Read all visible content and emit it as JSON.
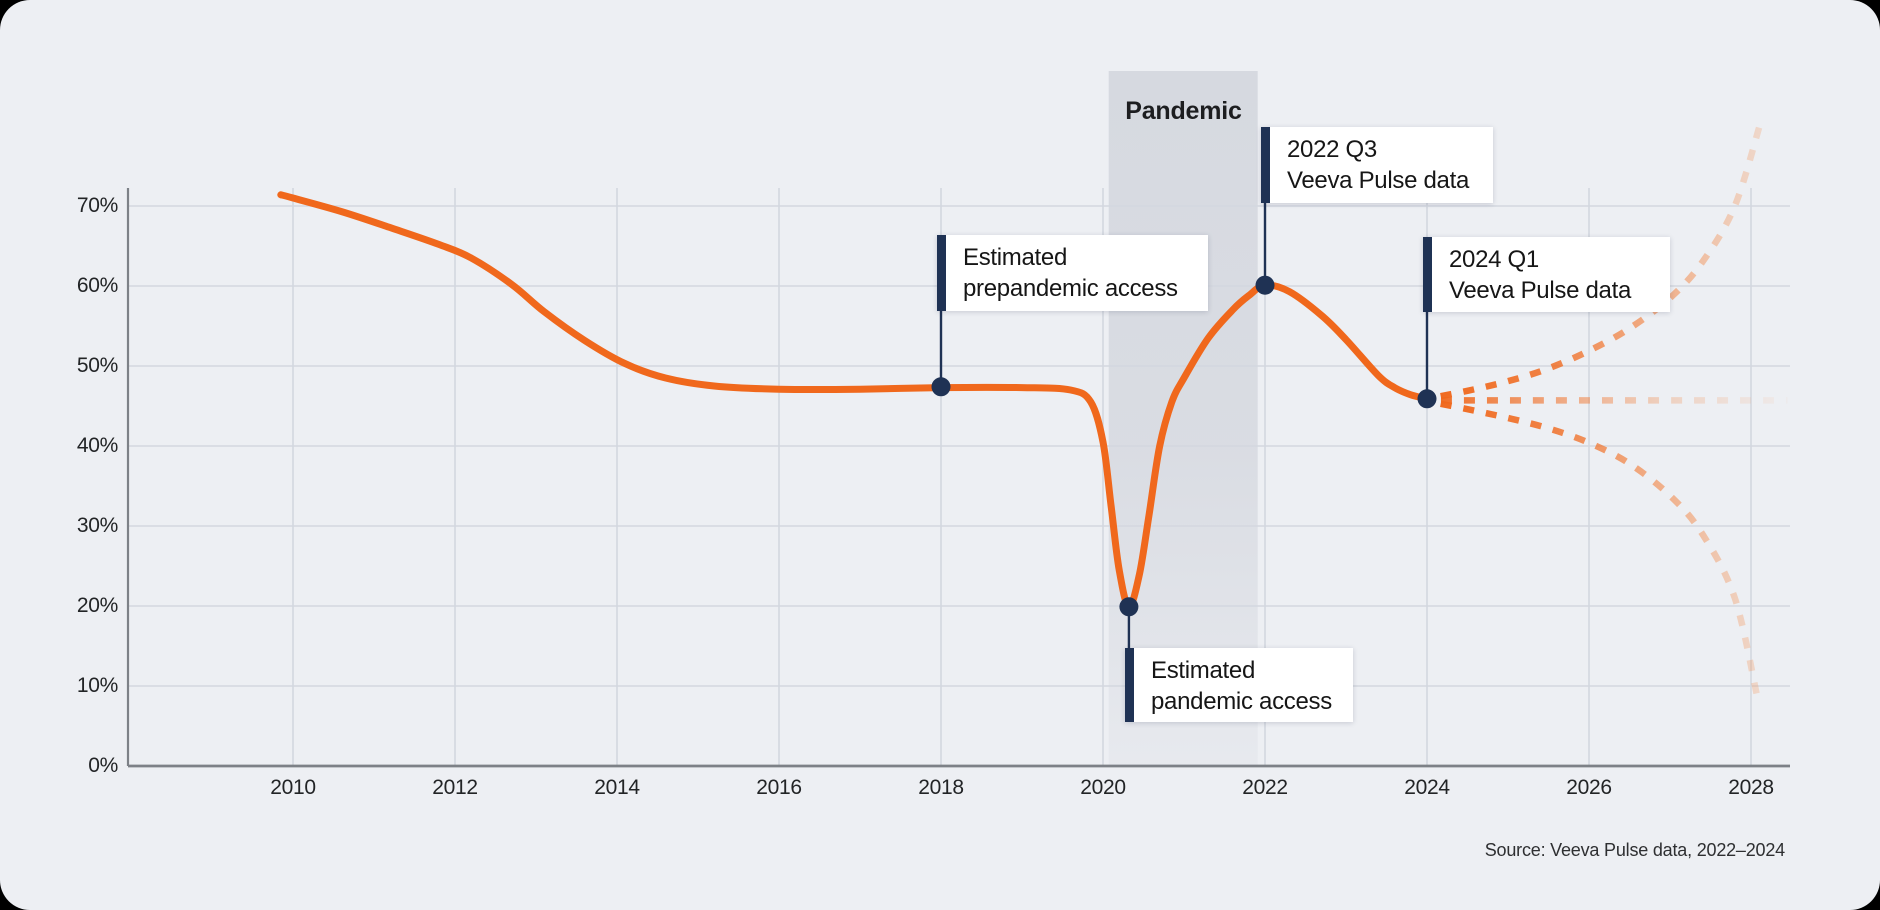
{
  "band_label": "Pandemic",
  "source_note": "Source: Veeva Pulse data, 2022–2024",
  "annotations": {
    "prepandemic": {
      "line1": "Estimated",
      "line2": "prepandemic access"
    },
    "pandemic_access": {
      "line1": "Estimated",
      "line2": "pandemic access"
    },
    "q3_2022": {
      "line1": "2022 Q3",
      "line2": "Veeva Pulse data"
    },
    "q1_2024": {
      "line1": "2024 Q1",
      "line2": "Veeva Pulse data"
    }
  },
  "colors": {
    "background": "#edeff3",
    "band": "#d6d9e0",
    "curve_orange": "#f0681c",
    "navy": "#1f3254",
    "gridline": "#d3d7df",
    "axis": "#7d8187",
    "tick_text": "#222426"
  },
  "chart_data": {
    "type": "line",
    "title": "",
    "xlabel": "",
    "ylabel": "",
    "x_tick_labels": [
      "2010",
      "2012",
      "2014",
      "2016",
      "2018",
      "2020",
      "2022",
      "2024",
      "2026",
      "2028"
    ],
    "x_tick_years": [
      2010,
      2012,
      2014,
      2016,
      2018,
      2020,
      2022,
      2024,
      2026,
      2028
    ],
    "y_tick_labels": [
      "0%",
      "10%",
      "20%",
      "30%",
      "40%",
      "50%",
      "60%",
      "70%"
    ],
    "y_tick_values": [
      0,
      10,
      20,
      30,
      40,
      50,
      60,
      70
    ],
    "ylim": [
      0,
      72.3
    ],
    "xlim": [
      2007.96,
      2028.48
    ],
    "grid": true,
    "legend": "none",
    "pandemic_band": {
      "label": "Pandemic",
      "x_start": 2020.07,
      "x_end": 2021.91
    },
    "series": [
      {
        "name": "hcp-access-historical",
        "style": "solid",
        "points": [
          [
            2009.85,
            71.4
          ],
          [
            2010,
            71
          ],
          [
            2010.6,
            69.3
          ],
          [
            2011.2,
            67.3
          ],
          [
            2011.8,
            65.2
          ],
          [
            2012.2,
            63.5
          ],
          [
            2012.7,
            60.2
          ],
          [
            2013.1,
            56.8
          ],
          [
            2013.6,
            53.2
          ],
          [
            2014.1,
            50.3
          ],
          [
            2014.6,
            48.5
          ],
          [
            2015.2,
            47.5
          ],
          [
            2016,
            47.1
          ],
          [
            2017,
            47.1
          ],
          [
            2018,
            47.3
          ],
          [
            2019,
            47.3
          ],
          [
            2019.6,
            47.0
          ],
          [
            2019.85,
            45.5
          ],
          [
            2020.0,
            40.5
          ],
          [
            2020.1,
            32.5
          ],
          [
            2020.2,
            24.5
          ],
          [
            2020.32,
            19.9
          ],
          [
            2020.45,
            24
          ],
          [
            2020.57,
            31.5
          ],
          [
            2020.7,
            40
          ],
          [
            2020.85,
            45.5
          ],
          [
            2021.0,
            48.5
          ],
          [
            2021.3,
            53.5
          ],
          [
            2021.6,
            57
          ],
          [
            2021.8,
            58.8
          ],
          [
            2022,
            60.1
          ],
          [
            2022.3,
            59.3
          ],
          [
            2022.7,
            56.3
          ],
          [
            2023.0,
            53.3
          ],
          [
            2023.4,
            48.8
          ],
          [
            2023.6,
            47.3
          ],
          [
            2023.8,
            46.4
          ],
          [
            2024,
            45.9
          ]
        ]
      },
      {
        "name": "projection-upper",
        "style": "dashed",
        "points": [
          [
            2024,
            45.9
          ],
          [
            2024.5,
            46.9
          ],
          [
            2025,
            48.1
          ],
          [
            2025.5,
            49.7
          ],
          [
            2026,
            51.9
          ],
          [
            2026.5,
            54.7
          ],
          [
            2027,
            58.5
          ],
          [
            2027.4,
            63
          ],
          [
            2027.8,
            70
          ],
          [
            2028.12,
            80.5
          ]
        ]
      },
      {
        "name": "projection-mid",
        "style": "dashed",
        "points": [
          [
            2024,
            45.7
          ],
          [
            2028.45,
            45.7
          ]
        ]
      },
      {
        "name": "projection-lower",
        "style": "dashed",
        "points": [
          [
            2024,
            45.6
          ],
          [
            2024.5,
            44.6
          ],
          [
            2025,
            43.5
          ],
          [
            2025.5,
            42.2
          ],
          [
            2026,
            40.4
          ],
          [
            2026.5,
            37.8
          ],
          [
            2027,
            33.8
          ],
          [
            2027.4,
            29
          ],
          [
            2027.8,
            21
          ],
          [
            2028.08,
            8.5
          ]
        ]
      }
    ],
    "markers": [
      {
        "name": "prepandemic-point",
        "year": 2018,
        "value": 47.4
      },
      {
        "name": "pandemic-low-point",
        "year": 2020.32,
        "value": 19.9
      },
      {
        "name": "q3-2022-point",
        "year": 2022,
        "value": 60.1
      },
      {
        "name": "q1-2024-point",
        "year": 2024,
        "value": 45.9
      }
    ]
  }
}
